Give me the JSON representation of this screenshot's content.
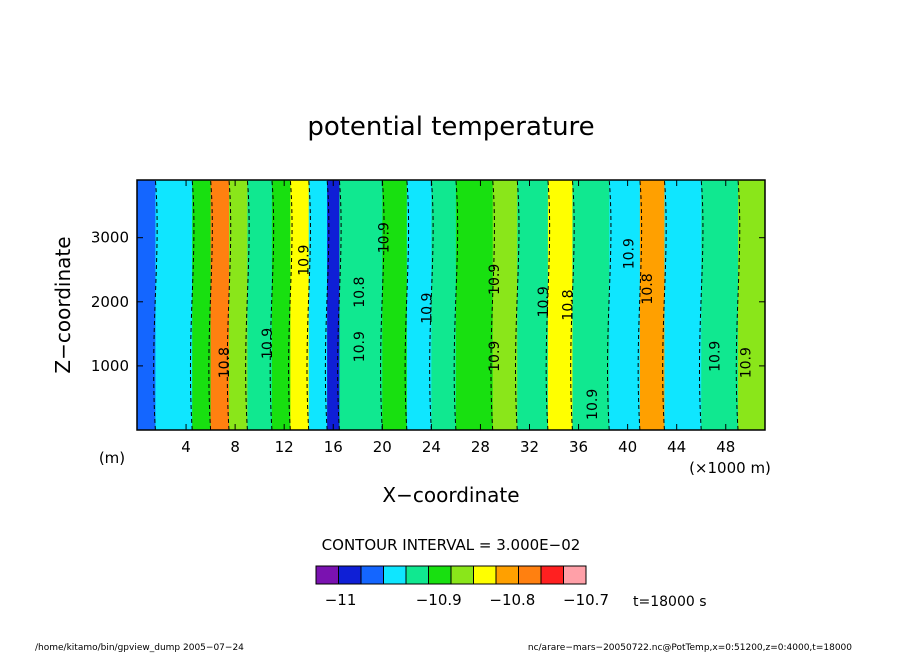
{
  "chart_data": {
    "type": "heatmap",
    "title": "potential temperature",
    "xlabel": "X−coordinate",
    "ylabel": "Z−coordinate",
    "x_unit_note": "(×1000 m)",
    "y_unit_note": "(m)",
    "xlim": [
      0,
      51200
    ],
    "ylim": [
      0,
      3900
    ],
    "x_ticks": [
      4000,
      8000,
      12000,
      16000,
      20000,
      24000,
      28000,
      32000,
      36000,
      40000,
      44000,
      48000
    ],
    "x_tick_labels": [
      "4",
      "8",
      "12",
      "16",
      "20",
      "24",
      "28",
      "32",
      "36",
      "40",
      "44",
      "48"
    ],
    "y_ticks": [
      1000,
      2000,
      3000
    ],
    "y_tick_labels": [
      "1000",
      "2000",
      "3000"
    ],
    "contour_interval_text": "CONTOUR INTERVAL = 3.000E−02",
    "colorbar": {
      "levels": [
        -11.07,
        -11.04,
        -11.01,
        -10.98,
        -10.95,
        -10.92,
        -10.89,
        -10.86,
        -10.83,
        -10.8,
        -10.77,
        -10.74,
        -10.71,
        -10.68
      ],
      "colors": [
        "#7a12b0",
        "#0f1fd6",
        "#1466ff",
        "#0fe6ff",
        "#10e890",
        "#18e010",
        "#8ae61a",
        "#ffff00",
        "#ffa000",
        "#ff8010",
        "#ff2020",
        "#ffa0a8"
      ],
      "tick_labels": [
        {
          "label": "−11",
          "value": -11.01
        },
        {
          "label": "−10.9",
          "value": -10.89
        },
        {
          "label": "−10.8",
          "value": -10.8
        },
        {
          "label": "−10.7",
          "value": -10.71
        }
      ]
    },
    "field": {
      "description": "horizontal wave structure of potential temperature (level index 0..11 relative to colorbar)",
      "cells": [
        {
          "x0": 0,
          "x1": 1500,
          "level": 2
        },
        {
          "x0": 1500,
          "x1": 4500,
          "level": 3
        },
        {
          "x0": 4500,
          "x1": 6000,
          "level": 5
        },
        {
          "x0": 6000,
          "x1": 7500,
          "level": 9
        },
        {
          "x0": 7500,
          "x1": 9000,
          "level": 6
        },
        {
          "x0": 9000,
          "x1": 11000,
          "level": 4
        },
        {
          "x0": 11000,
          "x1": 12500,
          "level": 5
        },
        {
          "x0": 12500,
          "x1": 14000,
          "level": 7
        },
        {
          "x0": 14000,
          "x1": 15500,
          "level": 3
        },
        {
          "x0": 15500,
          "x1": 16500,
          "level": 1
        },
        {
          "x0": 16500,
          "x1": 20000,
          "level": 4
        },
        {
          "x0": 20000,
          "x1": 22000,
          "level": 5
        },
        {
          "x0": 22000,
          "x1": 24000,
          "level": 3
        },
        {
          "x0": 24000,
          "x1": 26000,
          "level": 4
        },
        {
          "x0": 26000,
          "x1": 29000,
          "level": 5
        },
        {
          "x0": 29000,
          "x1": 31000,
          "level": 6
        },
        {
          "x0": 31000,
          "x1": 33500,
          "level": 4
        },
        {
          "x0": 33500,
          "x1": 35500,
          "level": 7
        },
        {
          "x0": 35500,
          "x1": 38500,
          "level": 4
        },
        {
          "x0": 38500,
          "x1": 41000,
          "level": 3
        },
        {
          "x0": 41000,
          "x1": 43000,
          "level": 8
        },
        {
          "x0": 43000,
          "x1": 46000,
          "level": 3
        },
        {
          "x0": 46000,
          "x1": 49000,
          "level": 4
        },
        {
          "x0": 49000,
          "x1": 51200,
          "level": 6
        }
      ]
    },
    "contour_labels": [
      {
        "text": "10.8",
        "x": 7500,
        "z": 1050
      },
      {
        "text": "10.9",
        "x": 11000,
        "z": 1350
      },
      {
        "text": "10.9",
        "x": 14000,
        "z": 2650
      },
      {
        "text": "10.9",
        "x": 18500,
        "z": 1300
      },
      {
        "text": "10.8",
        "x": 18500,
        "z": 2150
      },
      {
        "text": "10.9",
        "x": 20500,
        "z": 3000
      },
      {
        "text": "10.9",
        "x": 24000,
        "z": 1900
      },
      {
        "text": "10.9",
        "x": 29500,
        "z": 2350
      },
      {
        "text": "10.9",
        "x": 29500,
        "z": 1150
      },
      {
        "text": "10.9",
        "x": 33500,
        "z": 2000
      },
      {
        "text": "10.8",
        "x": 35500,
        "z": 1950
      },
      {
        "text": "10.9",
        "x": 37500,
        "z": 400
      },
      {
        "text": "10.9",
        "x": 40500,
        "z": 2750
      },
      {
        "text": "10.8",
        "x": 42000,
        "z": 2200
      },
      {
        "text": "10.9",
        "x": 47500,
        "z": 1150
      },
      {
        "text": "10.9",
        "x": 50000,
        "z": 1050
      }
    ],
    "annotation_time": "t=18000 s"
  },
  "footer": {
    "left": "/home/kitamo/bin/gpview_dump   2005−07−24",
    "right": "nc/arare−mars−20050722.nc@PotTemp,x=0:51200,z=0:4000,t=18000"
  }
}
